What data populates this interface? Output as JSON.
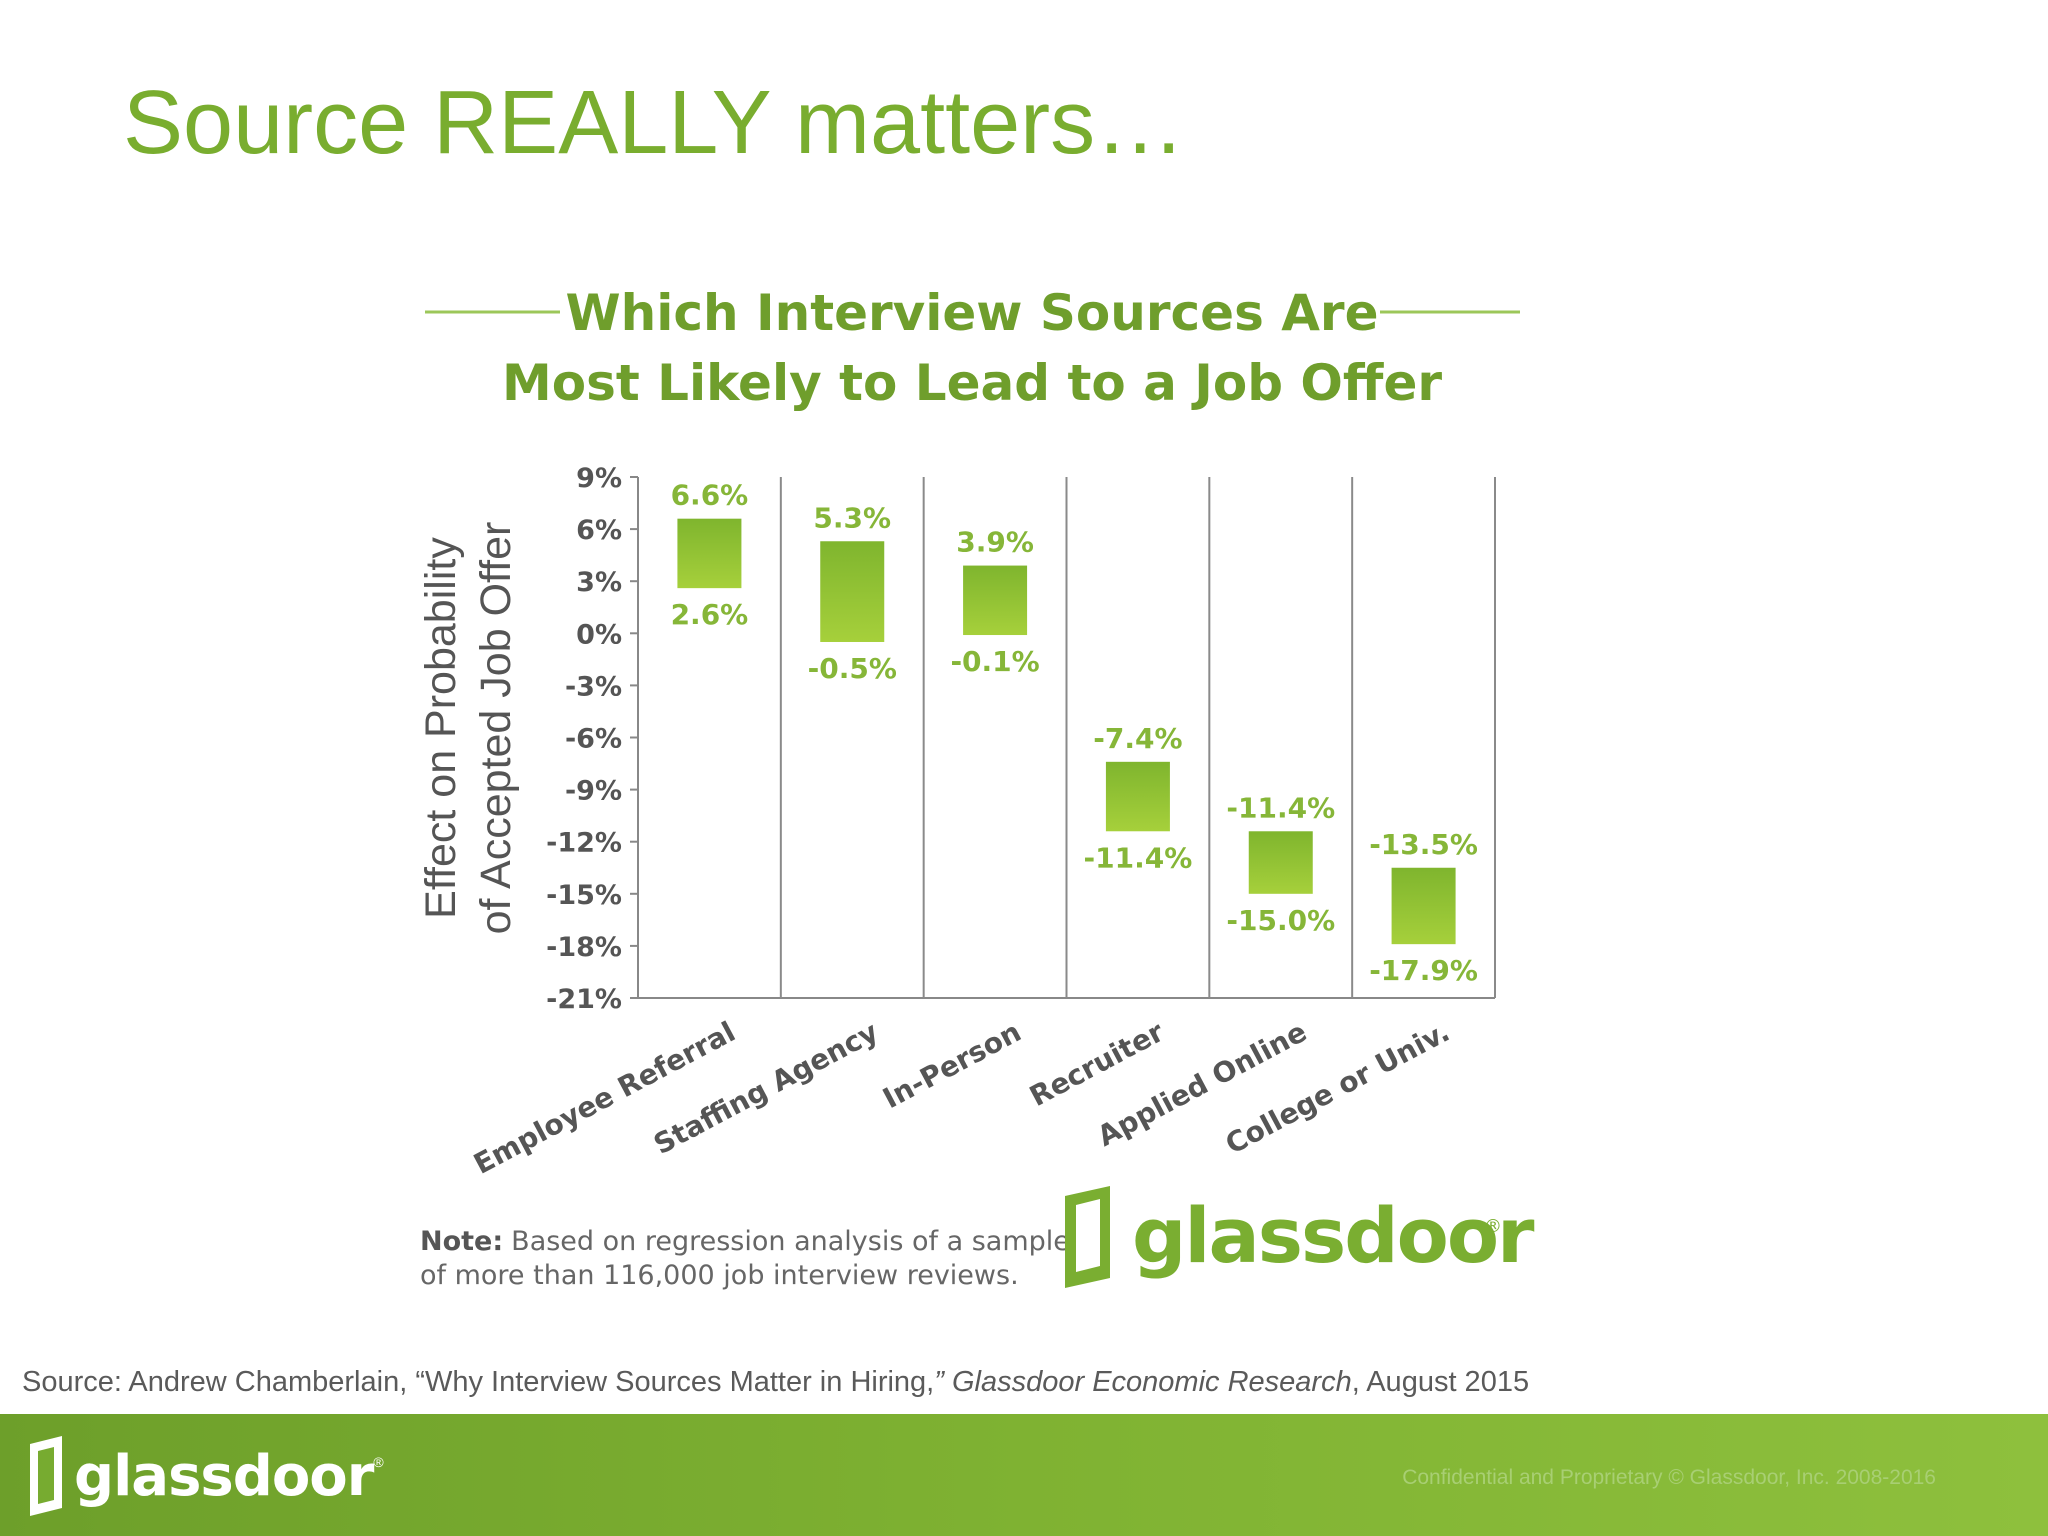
{
  "slide": {
    "title": "Source REALLY matters…"
  },
  "colors": {
    "brand_green": "#79ad2f",
    "chart_title_green": "#6f9e2c",
    "bar_top": "#7fb52e",
    "bar_bottom": "#a6d03b",
    "label_green": "#86b638",
    "axis_gray": "#555555",
    "footer_green": "#7aae31"
  },
  "chart_data": {
    "type": "bar",
    "subtype": "floating-range",
    "title_line1": "Which Interview Sources Are",
    "title_line2": "Most Likely to Lead to a Job Offer",
    "ylabel_line1": "Effect on Probability",
    "ylabel_line2": "of Accepted Job Offer",
    "ylim": [
      -21,
      9
    ],
    "yticks": [
      9,
      6,
      3,
      0,
      -3,
      -6,
      -9,
      -12,
      -15,
      -18,
      -21
    ],
    "ytick_labels": [
      "9%",
      "6%",
      "3%",
      "0%",
      "-3%",
      "-6%",
      "-9%",
      "-12%",
      "-15%",
      "-18%",
      "-21%"
    ],
    "categories": [
      "Employee Referral",
      "Staffing Agency",
      "In-Person",
      "Recruiter",
      "Applied Online",
      "College or Univ."
    ],
    "series": [
      {
        "high": [
          6.6,
          5.3,
          3.9,
          -7.4,
          -11.4,
          -13.5
        ],
        "low": [
          2.6,
          -0.5,
          -0.1,
          -11.4,
          -15.0,
          -17.9
        ],
        "high_labels": [
          "6.6%",
          "5.3%",
          "3.9%",
          "-7.4%",
          "-11.4%",
          "-13.5%"
        ],
        "low_labels": [
          "2.6%",
          "-0.5%",
          "-0.1%",
          "-11.4%",
          "-15.0%",
          "-17.9%"
        ]
      }
    ],
    "grid": "vertical separators",
    "note_bold": "Note:",
    "note_line1": "Based on regression analysis of a sample",
    "note_line2": "of more than 116,000 job interview reviews.",
    "logo_text": "glassdoor",
    "logo_mark": "®"
  },
  "source": {
    "prefix": "Source: Andrew Chamberlain, “Why Interview Sources Matter in Hiring,",
    "publication": "” Glassdoor Economic Research",
    "suffix": ", August 2015"
  },
  "footer": {
    "logo_text": "glassdoor",
    "logo_mark": "®",
    "confidential": "Confidential and Proprietary © Glassdoor, Inc. 2008-2016"
  }
}
